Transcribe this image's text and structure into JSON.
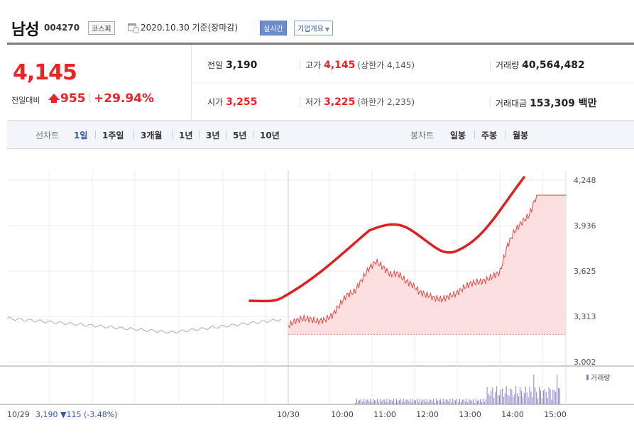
{
  "header": {
    "stock_name": "남성",
    "stock_code": "004270",
    "market": "코스피",
    "date_text": "2020.10.30  기준(장마감)",
    "realtime_label": "실시간",
    "overview_label": "기업개요"
  },
  "summary": {
    "current_price": "4,145",
    "change_label": "전일대비",
    "change_value": "955",
    "change_pct": "+29.94%",
    "prev_label": "전일",
    "prev_value": "3,190",
    "high_label": "고가",
    "high_value": "4,145",
    "upper_limit": "(상한가 4,145)",
    "volume_label": "거래량",
    "volume_value": "40,564,482",
    "open_label": "시가",
    "open_value": "3,255",
    "low_label": "저가",
    "low_value": "3,225",
    "lower_limit": "(하한가 2,235)",
    "amount_label": "거래대금",
    "amount_value": "153,309 백만"
  },
  "tabs": {
    "line_label": "선차트",
    "line_items": [
      "1일",
      "1주일",
      "3개월",
      "1년",
      "3년",
      "5년",
      "10년"
    ],
    "active": "1일",
    "candle_label": "봉차트",
    "candle_items": [
      "일봉",
      "주봉",
      "월봉"
    ]
  },
  "chart_data": {
    "type": "area",
    "title": "",
    "y_ticks": [
      "4,248",
      "3,936",
      "3,625",
      "3,313",
      "3,002"
    ],
    "ylim": [
      3002,
      4248
    ],
    "x_tick_labels": [
      "10/30",
      "10:00",
      "11:00",
      "12:00",
      "13:00",
      "14:00",
      "15:00"
    ],
    "prev_day_label": "10/29",
    "prev_day_info": "3,190 ▼115 (-3.48%)",
    "prev_day_close": 3190,
    "volume_legend": "거래량",
    "series": [
      {
        "name": "10/30",
        "x": [
          "09:00",
          "09:10",
          "09:20",
          "09:30",
          "09:40",
          "09:50",
          "10:00",
          "10:10",
          "10:20",
          "10:30",
          "10:40",
          "10:50",
          "11:00",
          "11:10",
          "11:20",
          "11:30",
          "11:40",
          "11:50",
          "12:00",
          "12:10",
          "12:20",
          "12:30",
          "12:40",
          "12:50",
          "13:00",
          "13:10",
          "13:20",
          "13:30",
          "13:40",
          "13:50",
          "14:00",
          "14:10",
          "14:20",
          "14:30",
          "14:40",
          "14:50",
          "15:00",
          "15:10",
          "15:20"
        ],
        "values": [
          3250,
          3285,
          3300,
          3295,
          3280,
          3290,
          3320,
          3390,
          3460,
          3480,
          3560,
          3640,
          3690,
          3650,
          3600,
          3610,
          3560,
          3530,
          3480,
          3460,
          3440,
          3430,
          3450,
          3470,
          3510,
          3540,
          3550,
          3560,
          3590,
          3620,
          3800,
          3900,
          3960,
          4010,
          4145,
          4145,
          4145,
          4145,
          4145
        ]
      }
    ],
    "colors": {
      "line": "#ee4444",
      "fill": "#fcd9d9",
      "prev_line": "#bbbbbb",
      "volume": "#8a7fc9",
      "annotation": "#e02020"
    }
  }
}
